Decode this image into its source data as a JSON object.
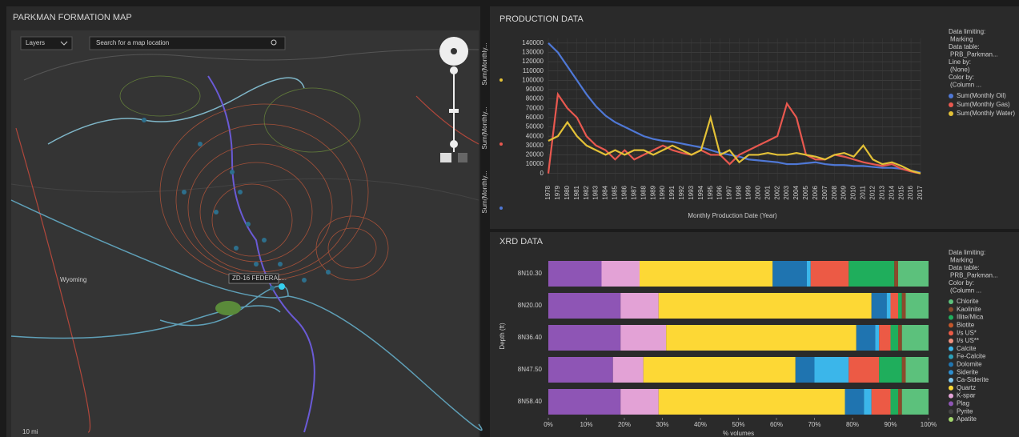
{
  "map": {
    "title": "PARKMAN FORMATION MAP",
    "layers_button": "Layers",
    "search_placeholder": "Search for a map location",
    "well_label": "ZD-16 FEDERAL...",
    "region_label": "Wyoming",
    "scale": "10 mi"
  },
  "chart_data": [
    {
      "type": "line",
      "title": "PRODUCTION DATA",
      "categories": [
        "1978",
        "1979",
        "1980",
        "1981",
        "1982",
        "1983",
        "1984",
        "1985",
        "1986",
        "1987",
        "1988",
        "1989",
        "1990",
        "1991",
        "1992",
        "1993",
        "1994",
        "1995",
        "1996",
        "1997",
        "1998",
        "1999",
        "2000",
        "2001",
        "2002",
        "2003",
        "2004",
        "2005",
        "2006",
        "2007",
        "2008",
        "2009",
        "2010",
        "2011",
        "2012",
        "2013",
        "2014",
        "2015",
        "2016",
        "2017"
      ],
      "series": [
        {
          "name": "Sum(Monthly Oil)",
          "color": "#4f78d6",
          "values": [
            140000,
            130000,
            115000,
            100000,
            85000,
            72000,
            62000,
            55000,
            50000,
            45000,
            40000,
            37000,
            35000,
            34000,
            32000,
            30000,
            28000,
            25000,
            22000,
            20000,
            18000,
            15000,
            14000,
            13000,
            12000,
            10000,
            10000,
            11000,
            12000,
            10000,
            9000,
            9000,
            8000,
            8000,
            7000,
            6000,
            6000,
            5000,
            3000,
            1000
          ]
        },
        {
          "name": "Sum(Monthly Gas)",
          "color": "#e8584f",
          "values": [
            0,
            85000,
            70000,
            60000,
            40000,
            30000,
            25000,
            15000,
            25000,
            15000,
            20000,
            25000,
            30000,
            25000,
            22000,
            20000,
            25000,
            20000,
            20000,
            10000,
            20000,
            25000,
            30000,
            35000,
            40000,
            75000,
            60000,
            20000,
            15000,
            15000,
            20000,
            18000,
            15000,
            12000,
            10000,
            8000,
            10000,
            5000,
            2000,
            0
          ]
        },
        {
          "name": "Sum(Monthly Water)",
          "color": "#e3c137",
          "values": [
            35000,
            40000,
            55000,
            40000,
            30000,
            25000,
            20000,
            25000,
            20000,
            25000,
            25000,
            20000,
            25000,
            30000,
            25000,
            20000,
            25000,
            60000,
            20000,
            25000,
            12000,
            20000,
            20000,
            22000,
            20000,
            20000,
            22000,
            20000,
            18000,
            15000,
            20000,
            22000,
            18000,
            30000,
            15000,
            10000,
            12000,
            8000,
            3000,
            0
          ]
        }
      ],
      "ylim": [
        -8000,
        145000
      ],
      "yticks": [
        0,
        10000,
        20000,
        30000,
        40000,
        50000,
        60000,
        70000,
        80000,
        90000,
        100000,
        110000,
        120000,
        130000,
        140000
      ],
      "grid": true,
      "xlabel": "Monthly Production Date (Year)",
      "ylabels": [
        "Sum(Monthly...",
        "Sum(Monthly...",
        "Sum(Monthly..."
      ],
      "legend_notes": [
        "Data limiting:",
        "Marking",
        "Data table:",
        "PRB_Parkman...",
        "Line by:",
        "(None)",
        "Color by:",
        "(Column ..."
      ]
    },
    {
      "type": "bar",
      "orientation": "horizontal",
      "stacked": true,
      "title": "XRD DATA",
      "categories": [
        "8N10.30",
        "8N20.00",
        "8N36.40",
        "8N47.50",
        "8N58.40"
      ],
      "series": [
        {
          "name": "Chlorite",
          "color": "#5cc17c",
          "values": [
            8,
            6,
            7,
            6,
            7
          ]
        },
        {
          "name": "Kaolinite",
          "color": "#8b4a2b",
          "values": [
            1,
            1,
            1,
            1,
            1
          ]
        },
        {
          "name": "Illite/Mica",
          "color": "#1fae5c",
          "values": [
            12,
            1,
            2,
            6,
            2
          ]
        },
        {
          "name": "Biotite",
          "color": "#c2562a",
          "values": [
            0,
            0,
            0,
            0,
            0
          ]
        },
        {
          "name": "I/s US*",
          "color": "#ec5a45",
          "values": [
            10,
            2,
            3,
            8,
            5
          ]
        },
        {
          "name": "I/s US**",
          "color": "#f0917f",
          "values": [
            0,
            0,
            0,
            0,
            0
          ]
        },
        {
          "name": "Calcite",
          "color": "#3bb6ea",
          "values": [
            1,
            1,
            1,
            9,
            2
          ]
        },
        {
          "name": "Fe-Calcite",
          "color": "#2b9fb8",
          "values": [
            0,
            0,
            0,
            0,
            0
          ]
        },
        {
          "name": "Dolomite",
          "color": "#1f74b0",
          "values": [
            9,
            4,
            5,
            5,
            5
          ]
        },
        {
          "name": "Siderite",
          "color": "#2d8fd0",
          "values": [
            0,
            0,
            0,
            0,
            0
          ]
        },
        {
          "name": "Ca-Siderite",
          "color": "#7fc8ef",
          "values": [
            0,
            0,
            0,
            0,
            0
          ]
        },
        {
          "name": "Quartz",
          "color": "#fdd835",
          "values": [
            35,
            56,
            50,
            40,
            49
          ]
        },
        {
          "name": "K-spar",
          "color": "#e3a2d6",
          "values": [
            10,
            10,
            12,
            8,
            10
          ]
        },
        {
          "name": "Plag",
          "color": "#8e55b5",
          "values": [
            14,
            19,
            19,
            17,
            19
          ]
        },
        {
          "name": "Pyrite",
          "color": "#444444",
          "values": [
            0,
            0,
            0,
            0,
            0
          ]
        },
        {
          "name": "Apatite",
          "color": "#a4d86e",
          "values": [
            0,
            0,
            0,
            0,
            0
          ]
        }
      ],
      "xlim": [
        0,
        100
      ],
      "xticks": [
        {
          "value": 0,
          "label": "0%"
        },
        {
          "value": 10,
          "label": "10%"
        },
        {
          "value": 20,
          "label": "20%"
        },
        {
          "value": 30,
          "label": "30%"
        },
        {
          "value": 40,
          "label": "40%"
        },
        {
          "value": 50,
          "label": "50%"
        },
        {
          "value": 60,
          "label": "60%"
        },
        {
          "value": 70,
          "label": "70%"
        },
        {
          "value": 80,
          "label": "80%"
        },
        {
          "value": 90,
          "label": "90%"
        },
        {
          "value": 100,
          "label": "100%"
        }
      ],
      "xlabel": "% volumes",
      "ylabel": "Depth (ft)",
      "legend_notes": [
        "Data limiting:",
        "Marking",
        "Data table:",
        "PRB_Parkman...",
        "Color by:",
        "(Column ..."
      ]
    }
  ]
}
